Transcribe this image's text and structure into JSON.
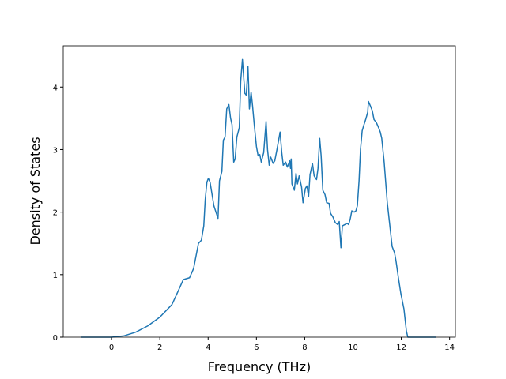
{
  "chart_data": {
    "type": "line",
    "x_label": "Frequency (THz)",
    "y_label": "Density of States",
    "xlim": [
      -2.0,
      14.24
    ],
    "ylim": [
      0,
      4.66
    ],
    "xticks": [
      0,
      2,
      4,
      6,
      8,
      10,
      12,
      14
    ],
    "yticks": [
      0,
      1,
      2,
      3,
      4
    ],
    "series": [
      {
        "color": "#1f77b4",
        "x": [
          -1.26,
          0,
          0.5,
          1.0,
          1.5,
          2.0,
          2.5,
          2.74,
          2.97,
          3.23,
          3.4,
          3.6,
          3.72,
          3.82,
          3.88,
          3.95,
          4.01,
          4.08,
          4.24,
          4.41,
          4.47,
          4.57,
          4.63,
          4.7,
          4.77,
          4.86,
          4.93,
          4.99,
          5.06,
          5.12,
          5.19,
          5.29,
          5.35,
          5.42,
          5.52,
          5.58,
          5.65,
          5.71,
          5.78,
          5.84,
          5.91,
          6.0,
          6.07,
          6.14,
          6.2,
          6.3,
          6.4,
          6.46,
          6.53,
          6.59,
          6.69,
          6.76,
          6.85,
          6.92,
          6.98,
          7.05,
          7.11,
          7.21,
          7.28,
          7.38,
          7.41,
          7.44,
          7.47,
          7.57,
          7.64,
          7.7,
          7.77,
          7.87,
          7.93,
          8.03,
          8.09,
          8.16,
          8.22,
          8.32,
          8.39,
          8.49,
          8.55,
          8.62,
          8.68,
          8.75,
          8.84,
          8.91,
          9.01,
          9.07,
          9.17,
          9.27,
          9.37,
          9.43,
          9.5,
          9.56,
          9.66,
          9.76,
          9.82,
          9.89,
          9.95,
          10.05,
          10.12,
          10.18,
          10.25,
          10.31,
          10.38,
          10.44,
          10.54,
          10.61,
          10.64,
          10.74,
          10.8,
          10.87,
          10.97,
          11.06,
          11.13,
          11.19,
          11.29,
          11.36,
          11.42,
          11.52,
          11.62,
          11.72,
          11.78,
          11.88,
          11.98,
          12.11,
          12.21,
          12.27,
          13.45
        ],
        "values": [
          0,
          0,
          0.02,
          0.08,
          0.18,
          0.32,
          0.52,
          0.72,
          0.92,
          0.95,
          1.1,
          1.5,
          1.55,
          1.78,
          2.2,
          2.48,
          2.54,
          2.48,
          2.1,
          1.9,
          2.5,
          2.65,
          3.15,
          3.2,
          3.65,
          3.72,
          3.5,
          3.4,
          2.8,
          2.85,
          3.2,
          3.35,
          4.1,
          4.44,
          3.9,
          3.87,
          4.33,
          3.65,
          3.92,
          3.7,
          3.4,
          3.05,
          2.9,
          2.92,
          2.8,
          2.95,
          3.45,
          3.0,
          2.75,
          2.88,
          2.78,
          2.82,
          3.0,
          3.15,
          3.28,
          2.95,
          2.75,
          2.8,
          2.72,
          2.82,
          2.7,
          2.85,
          2.45,
          2.35,
          2.62,
          2.45,
          2.58,
          2.4,
          2.15,
          2.38,
          2.42,
          2.25,
          2.6,
          2.78,
          2.58,
          2.52,
          2.7,
          3.18,
          2.9,
          2.35,
          2.28,
          2.15,
          2.14,
          1.98,
          1.92,
          1.83,
          1.8,
          1.85,
          1.43,
          1.78,
          1.8,
          1.82,
          1.8,
          1.9,
          2.02,
          2.0,
          2.02,
          2.1,
          2.5,
          3.0,
          3.3,
          3.38,
          3.5,
          3.6,
          3.77,
          3.68,
          3.62,
          3.48,
          3.43,
          3.35,
          3.28,
          3.18,
          2.8,
          2.45,
          2.15,
          1.8,
          1.45,
          1.35,
          1.22,
          0.95,
          0.7,
          0.45,
          0.1,
          0,
          0
        ]
      }
    ]
  }
}
